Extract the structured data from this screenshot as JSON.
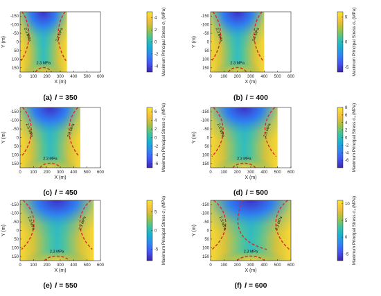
{
  "chart_data": [
    {
      "type": "heatmap",
      "caption_letter": "(a)",
      "caption_var": "l",
      "caption_value": "= 350",
      "l": 350,
      "xlabel": "X (m)",
      "ylabel": "Y (m)",
      "colorbar_label": "Maximum Principal Stress σ₁ (MPa)",
      "xlim": [
        0,
        600
      ],
      "ylim": [
        -175,
        175
      ],
      "y_reversed": true,
      "xticks": [
        "0",
        "100",
        "200",
        "300",
        "400",
        "500",
        "600"
      ],
      "yticks": [
        "-150",
        "-100",
        "-50",
        "0",
        "50",
        "100",
        "150"
      ],
      "clim": [
        -5,
        5
      ],
      "cticks": [
        "4",
        "2",
        "0",
        "-2",
        "-4"
      ],
      "contour_label": "2.3 MPa",
      "contour_count": 3
    },
    {
      "type": "heatmap",
      "caption_letter": "(b)",
      "caption_var": "l",
      "caption_value": "= 400",
      "l": 400,
      "xlabel": "X (m)",
      "ylabel": "Y (m)",
      "colorbar_label": "Maximum Principal Stress σ₁ (MPa)",
      "xlim": [
        0,
        600
      ],
      "ylim": [
        -175,
        175
      ],
      "y_reversed": true,
      "xticks": [
        "0",
        "100",
        "200",
        "300",
        "400",
        "500",
        "600"
      ],
      "yticks": [
        "-150",
        "-100",
        "-50",
        "0",
        "50",
        "100",
        "150"
      ],
      "clim": [
        -6,
        6
      ],
      "cticks": [
        "5",
        "0",
        "-5"
      ],
      "contour_label": "2.3 MPa",
      "contour_count": 3
    },
    {
      "type": "heatmap",
      "caption_letter": "(c)",
      "caption_var": "l",
      "caption_value": "= 450",
      "l": 450,
      "xlabel": "X (m)",
      "ylabel": "Y (m)",
      "colorbar_label": "Maximum Principal Stress σ₁ (MPa)",
      "xlim": [
        0,
        600
      ],
      "ylim": [
        -175,
        175
      ],
      "y_reversed": true,
      "xticks": [
        "0",
        "100",
        "200",
        "300",
        "400",
        "500",
        "600"
      ],
      "yticks": [
        "-150",
        "-100",
        "-50",
        "0",
        "50",
        "100",
        "150"
      ],
      "clim": [
        -7,
        7
      ],
      "cticks": [
        "6",
        "4",
        "2",
        "0",
        "-2",
        "-4",
        "-6"
      ],
      "contour_label": "2.3 MPa",
      "contour_count": 3
    },
    {
      "type": "heatmap",
      "caption_letter": "(d)",
      "caption_var": "l",
      "caption_value": "= 500",
      "l": 500,
      "xlabel": "X (m)",
      "ylabel": "Y (m)",
      "colorbar_label": "Maximum Principal Stress σ₁ (MPa)",
      "xlim": [
        0,
        600
      ],
      "ylim": [
        -175,
        175
      ],
      "y_reversed": true,
      "xticks": [
        "0",
        "100",
        "200",
        "300",
        "400",
        "500",
        "600"
      ],
      "yticks": [
        "-150",
        "-100",
        "-50",
        "0",
        "50",
        "100",
        "150"
      ],
      "clim": [
        -8,
        8
      ],
      "cticks": [
        "8",
        "6",
        "4",
        "2",
        "0",
        "-2",
        "-4",
        "-6"
      ],
      "contour_label": "2.3 MPa",
      "contour_count": 3
    },
    {
      "type": "heatmap",
      "caption_letter": "(e)",
      "caption_var": "l",
      "caption_value": "= 550",
      "l": 550,
      "xlabel": "X (m)",
      "ylabel": "Y (m)",
      "colorbar_label": "Maximum Principal Stress σ₁ (MPa)",
      "xlim": [
        0,
        600
      ],
      "ylim": [
        -175,
        175
      ],
      "y_reversed": true,
      "xticks": [
        "0",
        "100",
        "200",
        "300",
        "400",
        "500",
        "600"
      ],
      "yticks": [
        "-150",
        "-100",
        "-50",
        "0",
        "50",
        "100",
        "150"
      ],
      "clim": [
        -8,
        8
      ],
      "cticks": [
        "5",
        "0",
        "-5"
      ],
      "contour_label": "2.3 MPa",
      "contour_count": 3
    },
    {
      "type": "heatmap",
      "caption_letter": "(f)",
      "caption_var": "l",
      "caption_value": "= 600",
      "l": 600,
      "xlabel": "X (m)",
      "ylabel": "Y (m)",
      "colorbar_label": "Maximum Principal Stress σ₁ (MPa)",
      "xlim": [
        0,
        600
      ],
      "ylim": [
        -175,
        175
      ],
      "y_reversed": true,
      "xticks": [
        "0",
        "100",
        "200",
        "300",
        "400",
        "500",
        "600"
      ],
      "yticks": [
        "-150",
        "-100",
        "-50",
        "0",
        "50",
        "100",
        "150"
      ],
      "clim": [
        -7,
        11
      ],
      "cticks": [
        "10",
        "5",
        "0",
        "-5"
      ],
      "contour_label": "2.3 MPa",
      "contour_count": 4
    }
  ],
  "colors": {
    "contour": "#d8282c",
    "colormap": [
      "#3e26a8",
      "#4454f7",
      "#2f88f2",
      "#15b2d3",
      "#43c49a",
      "#a9c23c",
      "#f7be3c",
      "#f9e62a"
    ]
  }
}
